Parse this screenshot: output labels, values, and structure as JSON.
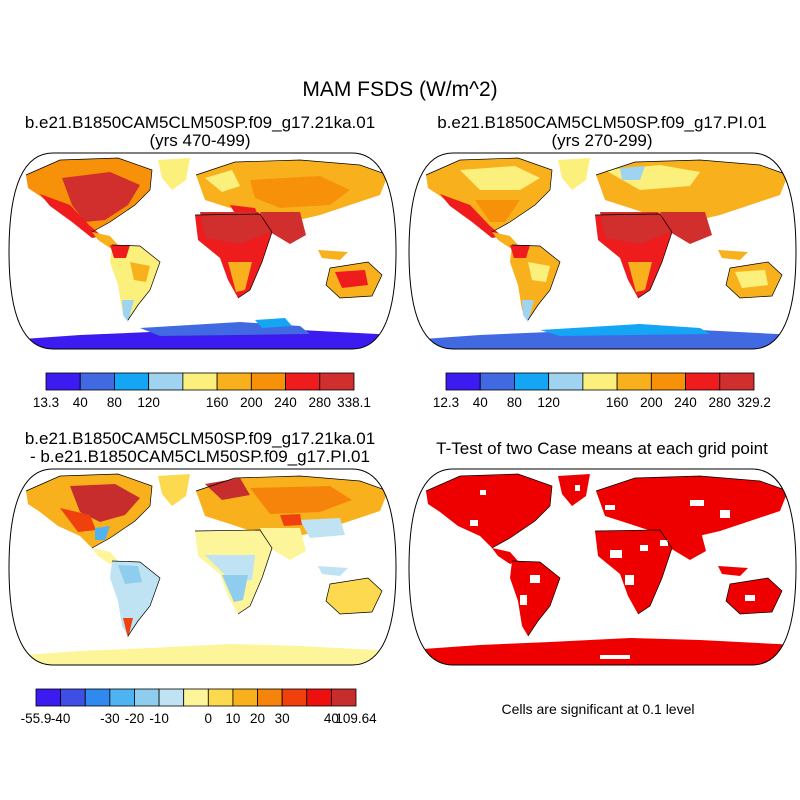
{
  "figure": {
    "title": "MAM FSDS (W/m^2)"
  },
  "panels": [
    {
      "id": "case1",
      "title_line1": "b.e21.B1850CAM5CLM50SP.f09_g17.21ka.01",
      "title_line2": "(yrs 470-499)",
      "colorbar": {
        "labels": [
          "13.3",
          "40",
          "80",
          "120",
          "160",
          "200",
          "240",
          "280",
          "338.1"
        ],
        "colors": [
          "#3c1bf0",
          "#4169e1",
          "#14a5f5",
          "#9fd3ef",
          "#fcf07c",
          "#f8b11d",
          "#f7910a",
          "#ee1c1c",
          "#d12e2e"
        ]
      }
    },
    {
      "id": "case2",
      "title_line1": "b.e21.B1850CAM5CLM50SP.f09_g17.PI.01",
      "title_line2": "(yrs 270-299)",
      "colorbar": {
        "labels": [
          "12.3",
          "40",
          "80",
          "120",
          "160",
          "200",
          "240",
          "280",
          "329.2"
        ],
        "colors": [
          "#3c1bf0",
          "#4169e1",
          "#14a5f5",
          "#9fd3ef",
          "#fcf07c",
          "#f8b11d",
          "#f7910a",
          "#ee1c1c",
          "#d12e2e"
        ]
      }
    },
    {
      "id": "diff",
      "title_line1": "b.e21.B1850CAM5CLM50SP.f09_g17.21ka.01",
      "title_line2": "- b.e21.B1850CAM5CLM50SP.f09_g17.PI.01",
      "colorbar": {
        "labels": [
          "-55.9",
          "-40",
          "-30",
          "-20",
          "-10",
          "0",
          "10",
          "20",
          "30",
          "40",
          "109.64"
        ],
        "colors": [
          "#3c1bf0",
          "#3f4fe6",
          "#2f89ee",
          "#4fb3f2",
          "#8fcdee",
          "#bfe3f2",
          "#fdf59a",
          "#fcd94e",
          "#f8b11d",
          "#f7840a",
          "#f0400e",
          "#ee0f0f",
          "#c72d2d"
        ]
      }
    },
    {
      "id": "ttest",
      "title_line1": "T-Test of two Case means at each grid point",
      "note": "Cells are significant at 0.1 level",
      "significant_color": "#ee0000"
    }
  ]
}
